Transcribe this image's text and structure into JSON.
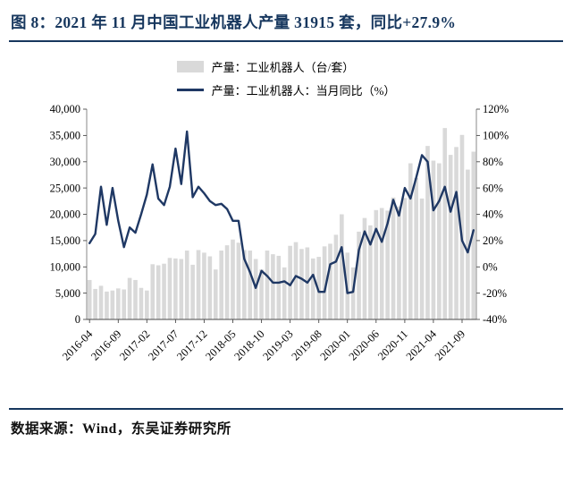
{
  "title": "图 8：2021 年 11 月中国工业机器人产量 31915 套，同比+27.9%",
  "source": "数据来源：Wind，东吴证券研究所",
  "colors": {
    "accent_navy": "#1F3864",
    "rule_navy": "#17375E",
    "bar_gray": "#D9D9D9"
  },
  "legend": {
    "bars": "产量：工业机器人（台/套）",
    "line": "产量：工业机器人：当月同比（%）"
  },
  "chart_data": {
    "type": "bar",
    "subtype": "bar+line dual axis",
    "months": [
      "2016-04",
      "2016-05",
      "2016-06",
      "2016-07",
      "2016-08",
      "2016-09",
      "2016-10",
      "2016-11",
      "2016-12",
      "2017-01",
      "2017-02",
      "2017-03",
      "2017-04",
      "2017-05",
      "2017-06",
      "2017-07",
      "2017-08",
      "2017-09",
      "2017-10",
      "2017-11",
      "2017-12",
      "2018-01",
      "2018-02",
      "2018-03",
      "2018-04",
      "2018-05",
      "2018-06",
      "2018-07",
      "2018-08",
      "2018-09",
      "2018-10",
      "2018-11",
      "2018-12",
      "2019-01",
      "2019-02",
      "2019-03",
      "2019-04",
      "2019-05",
      "2019-06",
      "2019-07",
      "2019-08",
      "2019-09",
      "2019-10",
      "2019-11",
      "2019-12",
      "2020-01",
      "2020-02",
      "2020-03",
      "2020-04",
      "2020-05",
      "2020-06",
      "2020-07",
      "2020-08",
      "2020-09",
      "2020-10",
      "2020-11",
      "2020-12",
      "2021-01",
      "2021-02",
      "2021-03",
      "2021-04",
      "2021-05",
      "2021-06",
      "2021-07",
      "2021-08",
      "2021-09",
      "2021-10",
      "2021-11"
    ],
    "series": [
      {
        "name": "产量：工业机器人（台/套）",
        "type": "bar",
        "axis": "left",
        "values": [
          7500,
          5800,
          6400,
          5300,
          5500,
          5900,
          5700,
          7900,
          7500,
          6000,
          5500,
          10500,
          10300,
          10600,
          11700,
          11600,
          11500,
          13100,
          10400,
          13200,
          12700,
          12000,
          9500,
          13100,
          14100,
          15200,
          14600,
          13200,
          13100,
          11500,
          9500,
          13100,
          12400,
          12100,
          9900,
          14000,
          14700,
          13400,
          13700,
          11600,
          11900,
          13900,
          14400,
          16100,
          20000,
          12700,
          9900,
          16700,
          19300,
          17900,
          20800,
          21200,
          20700,
          23200,
          21500,
          23100,
          29700,
          26900,
          23000,
          33000,
          30200,
          29700,
          36400,
          31300,
          32800,
          35100,
          28500,
          31915
        ]
      },
      {
        "name": "产量：工业机器人：当月同比（%）",
        "type": "line",
        "axis": "right",
        "values": [
          18,
          25,
          61,
          32,
          60,
          35,
          15,
          30,
          26,
          40,
          55,
          78,
          52,
          47,
          61,
          90,
          63,
          103,
          53,
          61,
          56,
          50,
          47,
          48,
          44,
          35,
          35,
          6,
          -4,
          -16,
          -3,
          -7,
          -12,
          -12,
          -11,
          -14,
          -7,
          -9,
          -12,
          -6,
          -19,
          -19,
          2,
          4,
          15,
          -20,
          -19,
          13,
          27,
          17,
          29,
          19,
          33,
          51,
          39,
          60,
          52,
          68,
          85,
          80,
          43,
          50,
          61,
          42,
          57,
          20,
          11,
          27.9
        ]
      }
    ],
    "left_axis": {
      "min": 0,
      "max": 40000,
      "tick_labels": [
        "0",
        "5,000",
        "10,000",
        "15,000",
        "20,000",
        "25,000",
        "30,000",
        "35,000",
        "40,000"
      ]
    },
    "right_axis": {
      "min": -40,
      "max": 120,
      "tick_labels": [
        "-40%",
        "-20%",
        "0%",
        "20%",
        "40%",
        "60%",
        "80%",
        "100%",
        "120%"
      ]
    },
    "x_tick_labels": [
      "2016-04",
      "2016-09",
      "2017-02",
      "2017-07",
      "2017-12",
      "2018-05",
      "2018-10",
      "2019-03",
      "2019-08",
      "2020-01",
      "2020-06",
      "2020-11",
      "2021-04",
      "2021-09"
    ],
    "title": "2021 年 11 月中国工业机器人产量 31915 套，同比+27.9%",
    "grid": false,
    "legend_position": "top-center"
  }
}
